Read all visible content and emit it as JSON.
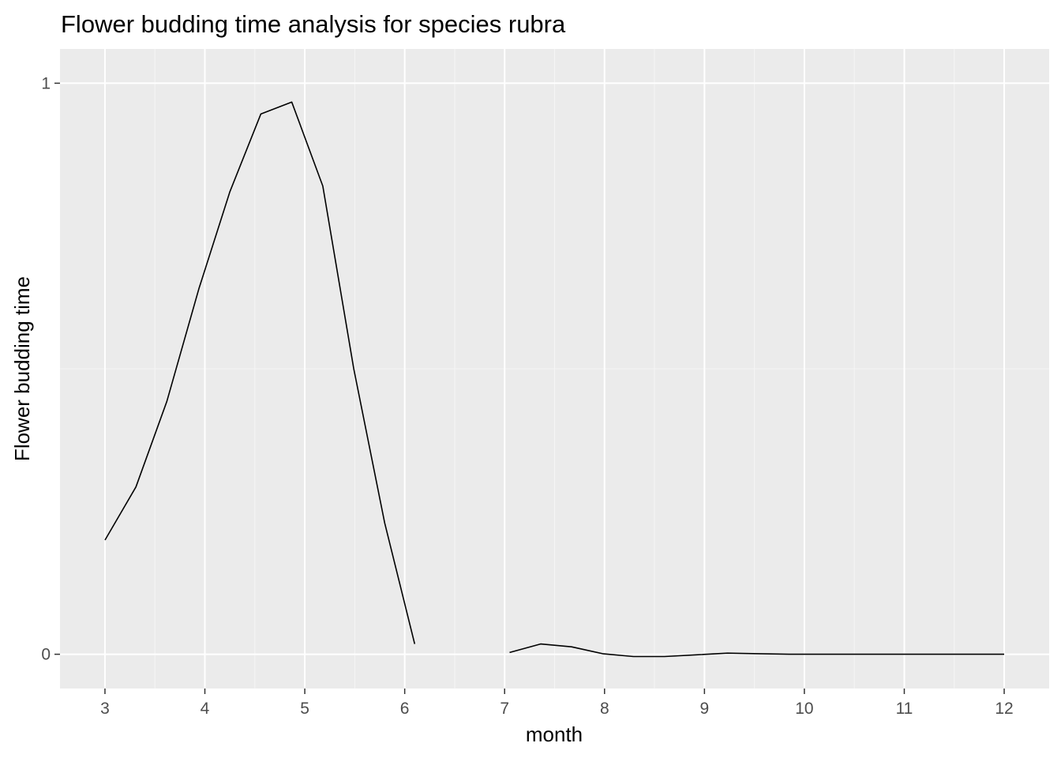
{
  "chart_data": {
    "type": "line",
    "title": "Flower budding time analysis for species rubra",
    "xlabel": "month",
    "ylabel": "Flower budding time",
    "xlim": [
      2.55,
      12.45
    ],
    "ylim": [
      -0.06,
      1.06
    ],
    "x_ticks": [
      3,
      4,
      5,
      6,
      7,
      8,
      9,
      10,
      11,
      12
    ],
    "x_tick_labels": [
      "3",
      "4",
      "5",
      "6",
      "7",
      "8",
      "9",
      "10",
      "11",
      "12"
    ],
    "y_ticks": [
      0,
      1
    ],
    "y_tick_labels": [
      "0",
      "1"
    ],
    "grid": true,
    "series": [
      {
        "segments": [
          {
            "x": [
              3.0,
              3.31,
              3.62,
              3.94,
              4.25,
              4.56,
              4.87,
              5.18,
              5.49,
              5.8,
              6.1
            ],
            "y": [
              0.2,
              0.293,
              0.443,
              0.64,
              0.81,
              0.946,
              0.967,
              0.82,
              0.5,
              0.23,
              0.018
            ]
          },
          {
            "x": [
              7.05,
              7.36,
              7.67,
              7.98,
              8.29,
              8.6,
              8.92,
              9.23,
              9.54,
              9.85,
              10.16,
              10.47,
              10.78,
              11.09,
              11.4,
              11.71,
              12.0
            ],
            "y": [
              0.003,
              0.018,
              0.013,
              0.001,
              -0.004,
              -0.004,
              -0.001,
              0.002,
              0.001,
              0.0,
              0.0,
              0.0,
              0.0,
              0.0,
              0.0,
              0.0,
              0.0
            ]
          }
        ]
      }
    ]
  },
  "colors": {
    "panel_background": "#ebebeb",
    "grid_major": "#ffffff",
    "grid_minor": "#f5f5f5",
    "line": "#000000",
    "tick_text": "#4d4d4d",
    "tick_mark": "#333333"
  }
}
